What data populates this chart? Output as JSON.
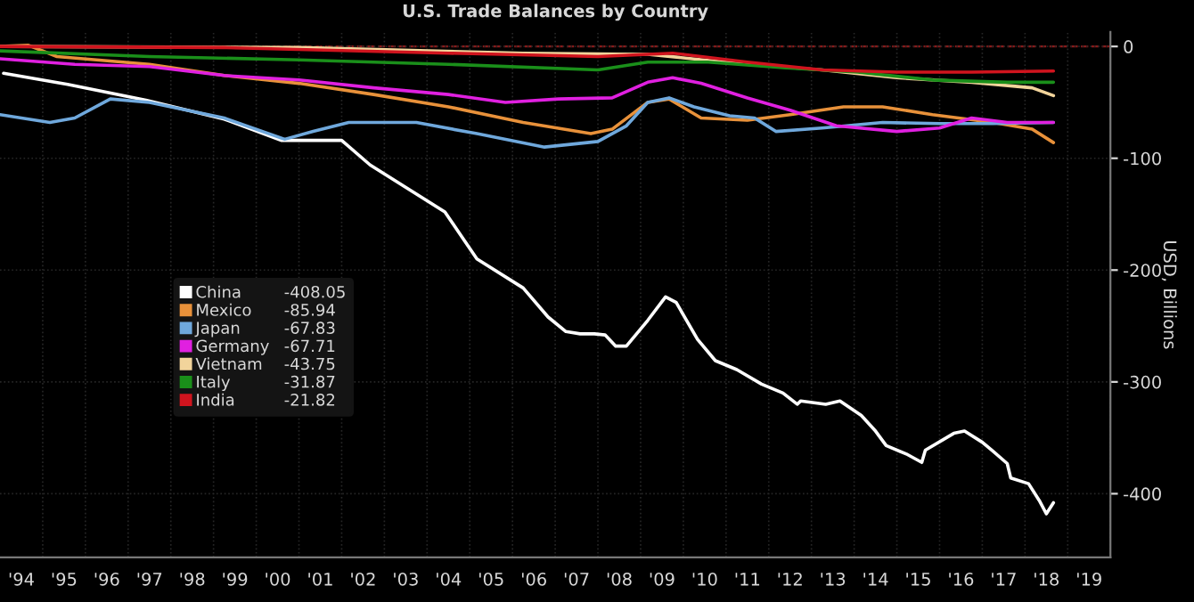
{
  "chart_data": {
    "type": "line",
    "title": "U.S. Trade Balances by Country",
    "ylabel": "USD, Billions",
    "xlim": [
      "1994-01",
      "2020-01"
    ],
    "ylim": [
      -457,
      13
    ],
    "xticks": [
      {
        "value": "1994-07",
        "label": "'94"
      },
      {
        "value": "1995-07",
        "label": "'95"
      },
      {
        "value": "1996-07",
        "label": "'96"
      },
      {
        "value": "1997-07",
        "label": "'97"
      },
      {
        "value": "1998-07",
        "label": "'98"
      },
      {
        "value": "1999-07",
        "label": "'99"
      },
      {
        "value": "2000-07",
        "label": "'00"
      },
      {
        "value": "2001-07",
        "label": "'01"
      },
      {
        "value": "2002-07",
        "label": "'02"
      },
      {
        "value": "2003-07",
        "label": "'03"
      },
      {
        "value": "2004-07",
        "label": "'04"
      },
      {
        "value": "2005-07",
        "label": "'05"
      },
      {
        "value": "2006-07",
        "label": "'06"
      },
      {
        "value": "2007-07",
        "label": "'07"
      },
      {
        "value": "2008-07",
        "label": "'08"
      },
      {
        "value": "2009-07",
        "label": "'09"
      },
      {
        "value": "2010-07",
        "label": "'10"
      },
      {
        "value": "2011-07",
        "label": "'11"
      },
      {
        "value": "2012-07",
        "label": "'12"
      },
      {
        "value": "2013-07",
        "label": "'13"
      },
      {
        "value": "2014-07",
        "label": "'14"
      },
      {
        "value": "2015-07",
        "label": "'15"
      },
      {
        "value": "2016-07",
        "label": "'16"
      },
      {
        "value": "2017-07",
        "label": "'17"
      },
      {
        "value": "2018-07",
        "label": "'18"
      },
      {
        "value": "2019-07",
        "label": "'19"
      },
      {
        "value": "1995",
        "label": null
      },
      {
        "value": "1996",
        "label": null
      },
      {
        "value": "1997",
        "label": null
      },
      {
        "value": "1998",
        "label": null
      },
      {
        "value": "1999",
        "label": null
      },
      {
        "value": "2000",
        "label": null
      },
      {
        "value": "2001",
        "label": null
      },
      {
        "value": "2002",
        "label": null
      },
      {
        "value": "2003",
        "label": null
      },
      {
        "value": "2004",
        "label": null
      },
      {
        "value": "2005",
        "label": null
      },
      {
        "value": "2006",
        "label": null
      },
      {
        "value": "2007",
        "label": null
      },
      {
        "value": "2008",
        "label": null
      },
      {
        "value": "2009",
        "label": null
      },
      {
        "value": "2010",
        "label": null
      },
      {
        "value": "2011",
        "label": null
      },
      {
        "value": "2012",
        "label": null
      },
      {
        "value": "2013",
        "label": null
      },
      {
        "value": "2014",
        "label": null
      },
      {
        "value": "2015",
        "label": null
      },
      {
        "value": "2016",
        "label": null
      },
      {
        "value": "2017",
        "label": null
      },
      {
        "value": "2018",
        "label": null
      },
      {
        "value": "2019",
        "label": null
      },
      {
        "value": "2020",
        "label": null
      }
    ],
    "yticks": [
      0,
      -100,
      -200,
      -300,
      -400
    ],
    "grid": true,
    "legend": "left",
    "marker": "none",
    "line_style": "solid",
    "ref_lines": [
      {
        "axis": "y",
        "value": 0,
        "label": null,
        "color": "#8b1a1a",
        "line_style": "dashed"
      }
    ],
    "annotations": [
      "-408.05",
      "-85.94",
      "-67.83",
      "-67.71",
      "-43.75",
      "-31.87",
      "-21.82"
    ],
    "series": [
      {
        "name": "China",
        "color": "#ffffff",
        "x": [
          "1994-02",
          "1995-08",
          "1997-06",
          "1999-04",
          "2000-08",
          "2002-01",
          "2002-09",
          "2004-06",
          "2005-03",
          "2006-04",
          "2006-11",
          "2007-04",
          "2007-08",
          "2007-12",
          "2008-03",
          "2008-06",
          "2008-09",
          "2009-03",
          "2009-08",
          "2009-11",
          "2010-05",
          "2010-10",
          "2011-04",
          "2011-11",
          "2012-05",
          "2012-09",
          "2012-10",
          "2013-05",
          "2013-09",
          "2014-03",
          "2014-07",
          "2014-10",
          "2015-04",
          "2015-08",
          "2015-09",
          "2016-05",
          "2016-08",
          "2017-01",
          "2017-04",
          "2017-08",
          "2017-09",
          "2018-02",
          "2018-05",
          "2018-07",
          "2018-09"
        ],
        "values": [
          -24,
          -34,
          -48,
          -65,
          -84,
          -84,
          -106,
          -148,
          -190,
          -216,
          -242,
          -255,
          -257,
          -257,
          -258,
          -268,
          -268,
          -245,
          -224,
          -229,
          -262,
          -281,
          -289,
          -302,
          -310,
          -320,
          -317,
          -320,
          -317,
          -330,
          -344,
          -357,
          -365,
          -372,
          -361,
          -346,
          -344,
          -354,
          -362,
          -373,
          -386,
          -391,
          -406,
          -418,
          -408
        ]
      },
      {
        "name": "Mexico",
        "color": "#e8913a",
        "x": [
          "1994-01",
          "1994-09",
          "1995-05",
          "1997-07",
          "1999-04",
          "2001-01",
          "2002-10",
          "2004-07",
          "2006-04",
          "2007-11",
          "2008-05",
          "2009-03",
          "2009-09",
          "2010-06",
          "2011-07",
          "2012-07",
          "2013-10",
          "2014-09",
          "2015-11",
          "2017-04",
          "2018-03",
          "2018-09"
        ],
        "values": [
          0,
          1,
          -9,
          -16,
          -26,
          -33,
          -43,
          -54,
          -68,
          -78,
          -74,
          -50,
          -47,
          -64,
          -66,
          -61,
          -54,
          -54,
          -61,
          -68,
          -74,
          -86
        ]
      },
      {
        "name": "Japan",
        "color": "#6fa8dc",
        "x": [
          "1994-01",
          "1995-03",
          "1995-10",
          "1996-08",
          "1997-07",
          "1999-04",
          "2000-09",
          "2001-05",
          "2002-03",
          "2003-10",
          "2005-03",
          "2006-10",
          "2008-01",
          "2008-09",
          "2009-03",
          "2009-09",
          "2010-04",
          "2011-02",
          "2011-09",
          "2012-03",
          "2013-04",
          "2014-09",
          "2016-01",
          "2017-04",
          "2018-09"
        ],
        "values": [
          -61,
          -68,
          -64,
          -47,
          -50,
          -64,
          -83,
          -76,
          -68,
          -68,
          -78,
          -90,
          -85,
          -71,
          -50,
          -46,
          -54,
          -62,
          -64,
          -76,
          -73,
          -68,
          -69,
          -69,
          -68
        ]
      },
      {
        "name": "Germany",
        "color": "#e020e0",
        "x": [
          "1994-01",
          "1995-10",
          "1997-07",
          "1999-04",
          "2001-01",
          "2002-10",
          "2004-07",
          "2005-11",
          "2007-02",
          "2008-05",
          "2009-03",
          "2009-10",
          "2010-06",
          "2011-07",
          "2012-07",
          "2013-08",
          "2015-01",
          "2016-01",
          "2016-10",
          "2017-08",
          "2018-09"
        ],
        "values": [
          -11,
          -16,
          -18,
          -26,
          -30,
          -37,
          -43,
          -50,
          -47,
          -46,
          -32,
          -28,
          -33,
          -46,
          -57,
          -71,
          -76,
          -73,
          -64,
          -68,
          -68
        ]
      },
      {
        "name": "Vietnam",
        "color": "#f2d49b",
        "x": [
          "1994-01",
          "2001-01",
          "2006-04",
          "2009-03",
          "2011-07",
          "2013-04",
          "2015-01",
          "2016-10",
          "2018-03",
          "2018-09"
        ],
        "values": [
          0,
          -1,
          -6,
          -7,
          -16,
          -21,
          -28,
          -32,
          -37,
          -44
        ]
      },
      {
        "name": "Italy",
        "color": "#1a8f1a",
        "x": [
          "1994-01",
          "1997-07",
          "2001-01",
          "2004-07",
          "2008-01",
          "2009-03",
          "2010-08",
          "2012-05",
          "2014-02",
          "2015-11",
          "2017-08",
          "2018-09"
        ],
        "values": [
          -4,
          -9,
          -12,
          -16,
          -21,
          -14,
          -14,
          -19,
          -23,
          -30,
          -32,
          -32
        ]
      },
      {
        "name": "India",
        "color": "#d0141e",
        "x": [
          "1994-01",
          "1999-04",
          "2004-07",
          "2008-01",
          "2009-10",
          "2011-07",
          "2013-04",
          "2015-01",
          "2016-10",
          "2018-09"
        ],
        "values": [
          0,
          -1,
          -6,
          -9,
          -6,
          -14,
          -21,
          -23,
          -23,
          -22
        ]
      }
    ]
  }
}
